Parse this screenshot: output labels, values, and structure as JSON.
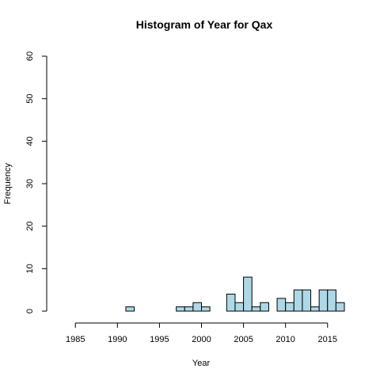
{
  "chart_data": {
    "type": "bar",
    "title": "Histogram of Year for Qax",
    "xlabel": "Year",
    "ylabel": "Frequency",
    "xlim": [
      1983,
      2017
    ],
    "ylim": [
      0,
      60
    ],
    "xticks": [
      1985,
      1990,
      1995,
      2000,
      2005,
      2010,
      2015
    ],
    "yticks": [
      0,
      10,
      20,
      30,
      40,
      50,
      60
    ],
    "bin_width": 1,
    "bar_color": "#add8e6",
    "bins": [
      {
        "start": 1983,
        "count": 0
      },
      {
        "start": 1984,
        "count": 0
      },
      {
        "start": 1985,
        "count": 0
      },
      {
        "start": 1986,
        "count": 0
      },
      {
        "start": 1987,
        "count": 0
      },
      {
        "start": 1988,
        "count": 0
      },
      {
        "start": 1989,
        "count": 0
      },
      {
        "start": 1990,
        "count": 0
      },
      {
        "start": 1991,
        "count": 1
      },
      {
        "start": 1992,
        "count": 0
      },
      {
        "start": 1993,
        "count": 0
      },
      {
        "start": 1994,
        "count": 0
      },
      {
        "start": 1995,
        "count": 0
      },
      {
        "start": 1996,
        "count": 0
      },
      {
        "start": 1997,
        "count": 1
      },
      {
        "start": 1998,
        "count": 1
      },
      {
        "start": 1999,
        "count": 2
      },
      {
        "start": 2000,
        "count": 1
      },
      {
        "start": 2001,
        "count": 0
      },
      {
        "start": 2002,
        "count": 0
      },
      {
        "start": 2003,
        "count": 4
      },
      {
        "start": 2004,
        "count": 2
      },
      {
        "start": 2005,
        "count": 8
      },
      {
        "start": 2006,
        "count": 1
      },
      {
        "start": 2007,
        "count": 2
      },
      {
        "start": 2008,
        "count": 0
      },
      {
        "start": 2009,
        "count": 3
      },
      {
        "start": 2010,
        "count": 2
      },
      {
        "start": 2011,
        "count": 5
      },
      {
        "start": 2012,
        "count": 5
      },
      {
        "start": 2013,
        "count": 1
      },
      {
        "start": 2014,
        "count": 5
      },
      {
        "start": 2015,
        "count": 5
      },
      {
        "start": 2016,
        "count": 2
      }
    ]
  }
}
